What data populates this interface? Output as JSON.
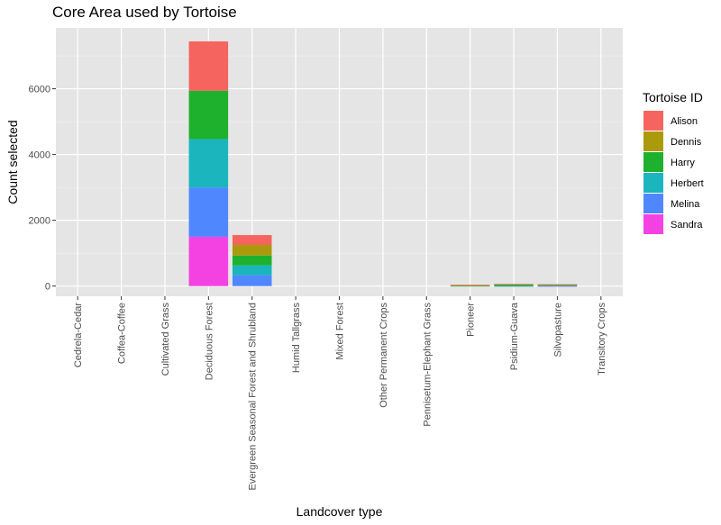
{
  "chart_data": {
    "type": "bar",
    "stacked": true,
    "title": "Core Area used by Tortoise",
    "xlabel": "Landcover type",
    "ylabel": "Count selected",
    "ylim": [
      -310,
      7850
    ],
    "yticks": [
      0,
      2000,
      4000,
      6000
    ],
    "grid": true,
    "legend": {
      "title": "Tortoise ID",
      "position": "right"
    },
    "categories": [
      "Cedrela-Cedar",
      "Coffea-Coffee",
      "Cultivated Grass",
      "Deciduous Forest",
      "Evergreen Seasonal Forest and Shrubland",
      "Humid Tallgrass",
      "Mixed Forest",
      "Other Permanent Crops",
      "Pennisetum-Elephant Grass",
      "Pioneer",
      "Psidium-Guava",
      "Silvopasture",
      "Transitory Crops"
    ],
    "series": [
      {
        "name": "Sandra",
        "color": "#f342e1",
        "values": [
          0,
          0,
          0,
          1500,
          0,
          0,
          0,
          0,
          0,
          0,
          0,
          5,
          0
        ]
      },
      {
        "name": "Melina",
        "color": "#4f87ff",
        "values": [
          0,
          0,
          0,
          1500,
          330,
          0,
          0,
          0,
          0,
          0,
          0,
          5,
          0
        ]
      },
      {
        "name": "Herbert",
        "color": "#1ab5bd",
        "values": [
          0,
          0,
          0,
          1470,
          300,
          0,
          0,
          0,
          0,
          0,
          5,
          5,
          0
        ]
      },
      {
        "name": "Harry",
        "color": "#1eb12e",
        "values": [
          0,
          0,
          0,
          1470,
          300,
          0,
          0,
          0,
          0,
          10,
          50,
          30,
          0
        ]
      },
      {
        "name": "Dennis",
        "color": "#ab9a0b",
        "values": [
          0,
          0,
          0,
          0,
          320,
          0,
          0,
          0,
          0,
          20,
          5,
          5,
          0
        ]
      },
      {
        "name": "Alison",
        "color": "#f6645f",
        "values": [
          0,
          0,
          0,
          1500,
          300,
          0,
          0,
          0,
          0,
          10,
          5,
          5,
          0
        ]
      }
    ]
  }
}
